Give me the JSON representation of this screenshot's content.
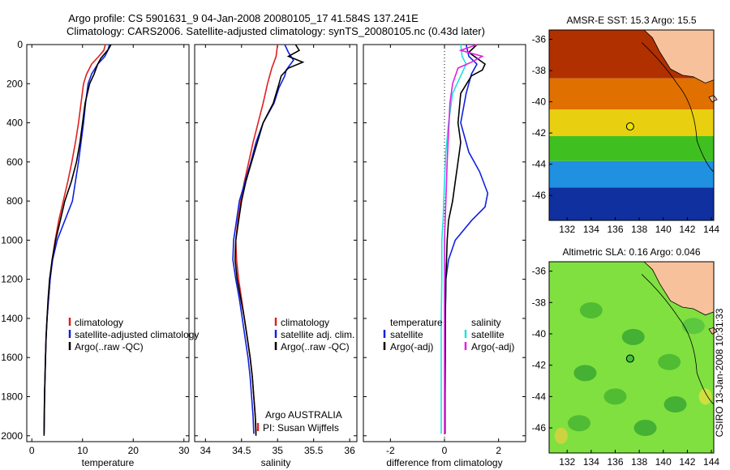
{
  "title": {
    "line1": "Argo profile: CS 5901631_9 04-Jan-2008 20080105_17 41.584S 137.241E",
    "line2": "Climatology: CARS2006. Satellite-adjusted climatology: synTS_20080105.nc (0.43d later)"
  },
  "colors": {
    "red": "#e02020",
    "blue": "#1020e0",
    "black": "#000000",
    "cyan": "#20e0e0",
    "magenta": "#e020e0",
    "land": "#f7c29b"
  },
  "chart_data": [
    {
      "type": "line",
      "xlabel": "temperature",
      "xlim": [
        -1,
        31
      ],
      "xticks": [
        0,
        10,
        20,
        30
      ],
      "ylim": [
        2030,
        0
      ],
      "yticks": [
        0,
        200,
        400,
        600,
        800,
        1000,
        1200,
        1400,
        1600,
        1800,
        2000
      ],
      "legend": [
        "climatology",
        "satellite-adjusted climatology",
        "Argo(..raw -QC)"
      ],
      "series": [
        {
          "name": "climatology",
          "color": "red",
          "points": [
            [
              14.5,
              0
            ],
            [
              14.2,
              30
            ],
            [
              13.2,
              60
            ],
            [
              11.8,
              100
            ],
            [
              10.8,
              150
            ],
            [
              10.2,
              200
            ],
            [
              9.7,
              300
            ],
            [
              9.2,
              400
            ],
            [
              8.6,
              500
            ],
            [
              7.9,
              600
            ],
            [
              7.1,
              700
            ],
            [
              6.2,
              800
            ],
            [
              5.3,
              900
            ],
            [
              4.6,
              1000
            ],
            [
              4.0,
              1100
            ],
            [
              3.6,
              1200
            ],
            [
              3.3,
              1300
            ],
            [
              3.0,
              1400
            ],
            [
              2.8,
              1500
            ],
            [
              2.7,
              1600
            ],
            [
              2.6,
              1700
            ],
            [
              2.5,
              1800
            ],
            [
              2.45,
              1900
            ],
            [
              2.4,
              1990
            ]
          ]
        },
        {
          "name": "satellite-adjusted climatology",
          "color": "blue",
          "points": [
            [
              15.3,
              0
            ],
            [
              15.0,
              30
            ],
            [
              14.4,
              60
            ],
            [
              13.0,
              100
            ],
            [
              11.8,
              150
            ],
            [
              11.1,
              200
            ],
            [
              10.6,
              300
            ],
            [
              10.2,
              400
            ],
            [
              9.7,
              500
            ],
            [
              9.2,
              600
            ],
            [
              8.6,
              700
            ],
            [
              8.0,
              800
            ],
            [
              6.5,
              900
            ],
            [
              5.0,
              1000
            ],
            [
              4.1,
              1100
            ],
            [
              3.6,
              1200
            ],
            [
              3.3,
              1300
            ],
            [
              3.0,
              1400
            ],
            [
              2.8,
              1500
            ],
            [
              2.7,
              1600
            ],
            [
              2.6,
              1700
            ],
            [
              2.5,
              1800
            ],
            [
              2.45,
              1900
            ],
            [
              2.4,
              1990
            ]
          ]
        },
        {
          "name": "Argo(..raw -QC)",
          "color": "black",
          "points": [
            [
              15.6,
              0
            ],
            [
              15.2,
              20
            ],
            [
              14.6,
              40
            ],
            [
              13.6,
              70
            ],
            [
              13.0,
              100
            ],
            [
              12.3,
              150
            ],
            [
              11.4,
              200
            ],
            [
              10.5,
              300
            ],
            [
              10.0,
              400
            ],
            [
              9.5,
              500
            ],
            [
              8.8,
              600
            ],
            [
              7.8,
              700
            ],
            [
              6.5,
              800
            ],
            [
              5.6,
              900
            ],
            [
              4.7,
              1000
            ],
            [
              4.0,
              1100
            ],
            [
              3.5,
              1200
            ],
            [
              3.2,
              1300
            ],
            [
              3.0,
              1400
            ],
            [
              2.8,
              1500
            ],
            [
              2.7,
              1600
            ],
            [
              2.6,
              1700
            ],
            [
              2.5,
              1800
            ],
            [
              2.45,
              1900
            ],
            [
              2.4,
              2000
            ]
          ]
        }
      ]
    },
    {
      "type": "line",
      "xlabel": "salinity",
      "xlim": [
        33.85,
        36.1
      ],
      "xticks": [
        34,
        34.5,
        35,
        35.5,
        36
      ],
      "xticklabels": [
        "34",
        "34.5",
        "35",
        "35.5",
        "36"
      ],
      "ylim": [
        2030,
        0
      ],
      "legend": [
        "climatology",
        "satellite adj. clim.",
        "Argo(..raw -QC)"
      ],
      "annotation": [
        "Argo AUSTRALIA",
        "PI: Susan Wijffels"
      ],
      "series": [
        {
          "name": "climatology",
          "color": "red",
          "points": [
            [
              35.0,
              0
            ],
            [
              34.98,
              60
            ],
            [
              34.92,
              120
            ],
            [
              34.86,
              200
            ],
            [
              34.8,
              300
            ],
            [
              34.73,
              400
            ],
            [
              34.66,
              500
            ],
            [
              34.6,
              600
            ],
            [
              34.54,
              700
            ],
            [
              34.49,
              800
            ],
            [
              34.45,
              900
            ],
            [
              34.42,
              1000
            ],
            [
              34.43,
              1100
            ],
            [
              34.46,
              1200
            ],
            [
              34.5,
              1300
            ],
            [
              34.54,
              1400
            ],
            [
              34.58,
              1500
            ],
            [
              34.62,
              1600
            ],
            [
              34.65,
              1700
            ],
            [
              34.67,
              1800
            ],
            [
              34.69,
              1900
            ],
            [
              34.7,
              1990
            ]
          ]
        },
        {
          "name": "satellite adj. clim.",
          "color": "blue",
          "points": [
            [
              35.1,
              0
            ],
            [
              35.15,
              40
            ],
            [
              35.22,
              80
            ],
            [
              35.12,
              130
            ],
            [
              35.1,
              160
            ],
            [
              35.02,
              220
            ],
            [
              34.95,
              300
            ],
            [
              34.8,
              400
            ],
            [
              34.7,
              500
            ],
            [
              34.63,
              600
            ],
            [
              34.55,
              700
            ],
            [
              34.47,
              800
            ],
            [
              34.43,
              900
            ],
            [
              34.39,
              1000
            ],
            [
              34.38,
              1100
            ],
            [
              34.42,
              1200
            ],
            [
              34.47,
              1300
            ],
            [
              34.51,
              1400
            ],
            [
              34.55,
              1500
            ],
            [
              34.59,
              1600
            ],
            [
              34.62,
              1700
            ],
            [
              34.64,
              1800
            ],
            [
              34.66,
              1900
            ],
            [
              34.67,
              1990
            ]
          ]
        },
        {
          "name": "Argo(..raw -QC)",
          "color": "black",
          "points": [
            [
              35.25,
              0
            ],
            [
              35.3,
              30
            ],
            [
              35.15,
              60
            ],
            [
              35.35,
              90
            ],
            [
              35.15,
              120
            ],
            [
              35.05,
              160
            ],
            [
              35.02,
              200
            ],
            [
              34.94,
              300
            ],
            [
              34.8,
              400
            ],
            [
              34.72,
              500
            ],
            [
              34.64,
              600
            ],
            [
              34.56,
              700
            ],
            [
              34.5,
              800
            ],
            [
              34.46,
              900
            ],
            [
              34.42,
              1000
            ],
            [
              34.41,
              1100
            ],
            [
              34.44,
              1200
            ],
            [
              34.49,
              1300
            ],
            [
              34.54,
              1400
            ],
            [
              34.58,
              1500
            ],
            [
              34.62,
              1600
            ],
            [
              34.65,
              1700
            ],
            [
              34.67,
              1800
            ],
            [
              34.69,
              1900
            ],
            [
              34.7,
              2000
            ]
          ]
        }
      ]
    },
    {
      "type": "line",
      "xlabel": "difference from climatology",
      "xlim": [
        -3,
        3
      ],
      "xticks": [
        -2,
        0,
        2
      ],
      "xticklabels": [
        "-2",
        "0",
        "2"
      ],
      "ylim": [
        2030,
        0
      ],
      "legend_left": [
        "temperature",
        "satellite",
        "Argo(-adj)"
      ],
      "legend_right": [
        "salinity",
        "satellite",
        "Argo(-adj)"
      ],
      "series": [
        {
          "name": "satellite",
          "color": "blue",
          "points": [
            [
              0.8,
              0
            ],
            [
              0.9,
              60
            ],
            [
              1.2,
              100
            ],
            [
              1.0,
              150
            ],
            [
              0.8,
              250
            ],
            [
              0.6,
              400
            ],
            [
              0.9,
              550
            ],
            [
              1.3,
              650
            ],
            [
              1.6,
              760
            ],
            [
              1.5,
              830
            ],
            [
              1.0,
              900
            ],
            [
              0.4,
              1000
            ],
            [
              0.15,
              1100
            ],
            [
              0.05,
              1200
            ],
            [
              0.03,
              1400
            ],
            [
              0.02,
              1600
            ],
            [
              0.02,
              1800
            ],
            [
              0.02,
              1990
            ]
          ]
        },
        {
          "name": "Argo(-adj)",
          "color": "black",
          "points": [
            [
              1.2,
              0
            ],
            [
              0.9,
              40
            ],
            [
              1.5,
              100
            ],
            [
              1.4,
              130
            ],
            [
              1.0,
              160
            ],
            [
              0.6,
              250
            ],
            [
              0.5,
              400
            ],
            [
              0.6,
              500
            ],
            [
              0.5,
              600
            ],
            [
              0.4,
              700
            ],
            [
              0.3,
              800
            ],
            [
              0.15,
              900
            ],
            [
              0.1,
              1000
            ],
            [
              0.05,
              1200
            ],
            [
              0.03,
              1400
            ],
            [
              0.03,
              1600
            ],
            [
              0.02,
              1800
            ],
            [
              0.02,
              1990
            ]
          ]
        },
        {
          "name": "satellite",
          "color": "cyan",
          "points": [
            [
              0.6,
              0
            ],
            [
              0.65,
              60
            ],
            [
              0.8,
              100
            ],
            [
              0.6,
              160
            ],
            [
              0.3,
              250
            ],
            [
              0.15,
              400
            ],
            [
              0.05,
              550
            ],
            [
              0.0,
              700
            ],
            [
              -0.05,
              900
            ],
            [
              -0.1,
              1000
            ],
            [
              -0.1,
              1200
            ],
            [
              -0.12,
              1400
            ],
            [
              -0.12,
              1600
            ],
            [
              -0.12,
              1800
            ],
            [
              -0.12,
              1990
            ]
          ]
        },
        {
          "name": "Argo(-adj)",
          "color": "magenta",
          "points": [
            [
              1.2,
              0
            ],
            [
              0.6,
              30
            ],
            [
              1.4,
              60
            ],
            [
              1.0,
              90
            ],
            [
              0.5,
              120
            ],
            [
              0.3,
              200
            ],
            [
              0.2,
              300
            ],
            [
              0.15,
              450
            ],
            [
              0.1,
              600
            ],
            [
              0.05,
              800
            ],
            [
              0.0,
              1000
            ],
            [
              0.0,
              1200
            ],
            [
              0.0,
              1400
            ],
            [
              0.0,
              1600
            ],
            [
              0.0,
              1800
            ],
            [
              0.0,
              1990
            ]
          ]
        }
      ]
    },
    {
      "type": "heatmap",
      "title": "AMSR-E SST: 15.3  Argo: 15.5",
      "xlim": [
        130.5,
        144.2
      ],
      "ylim": [
        -47.6,
        -35.4
      ],
      "xticks": [
        132,
        134,
        136,
        138,
        140,
        142,
        144
      ],
      "yticks": [
        -36,
        -38,
        -40,
        -42,
        -44,
        -46
      ],
      "marker": [
        137.24,
        -41.58
      ],
      "marker_color": "#e8e800",
      "color_bands": [
        {
          "lat_range": [
            -35.4,
            -38.5
          ],
          "color": "#b03000"
        },
        {
          "lat_range": [
            -38.5,
            -40.5
          ],
          "color": "#e07000"
        },
        {
          "lat_range": [
            -40.5,
            -42.2
          ],
          "color": "#e8d010"
        },
        {
          "lat_range": [
            -42.2,
            -43.8
          ],
          "color": "#40c020"
        },
        {
          "lat_range": [
            -43.8,
            -45.5
          ],
          "color": "#2090e0"
        },
        {
          "lat_range": [
            -45.5,
            -47.6
          ],
          "color": "#1030a0"
        }
      ]
    },
    {
      "type": "heatmap",
      "title": "Altimetric SLA: 0.16  Argo: 0.046",
      "xlim": [
        130.5,
        144.2
      ],
      "ylim": [
        -47.6,
        -35.4
      ],
      "xticks": [
        132,
        134,
        136,
        138,
        140,
        142,
        144
      ],
      "yticks": [
        -36,
        -38,
        -40,
        -42,
        -44,
        -46
      ],
      "marker": [
        137.24,
        -41.58
      ],
      "marker_color": "#40c040",
      "base_color": "#80e040"
    }
  ],
  "side_label": "CSIRO 13-Jan-2008 10:31:33"
}
